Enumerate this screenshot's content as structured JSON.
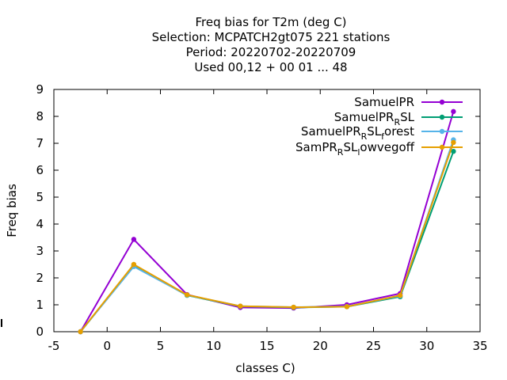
{
  "chart_data": {
    "type": "line",
    "title_lines": [
      "Freq bias  for T2m (deg C)",
      "Selection: MCPATCH2gt075    221 stations",
      "Period: 20220702-20220709",
      "Used  00,12 + 00 01 ... 48"
    ],
    "xlabel": "classes C)",
    "ylabel": "Freq bias",
    "xlim": [
      -5,
      35
    ],
    "ylim": [
      0,
      9
    ],
    "xticks": [
      -5,
      0,
      5,
      10,
      15,
      20,
      25,
      30,
      35
    ],
    "yticks": [
      0,
      1,
      2,
      3,
      4,
      5,
      6,
      7,
      8,
      9
    ],
    "grid": false,
    "legend_position": "top-right",
    "x": [
      -2.5,
      2.5,
      7.5,
      12.5,
      17.5,
      22.5,
      27.5,
      32.5
    ],
    "series": [
      {
        "name": "SamuelPR",
        "legend_parts": [
          {
            "t": "SamuelPR"
          }
        ],
        "color": "#9400d3",
        "values": [
          0.0,
          3.43,
          1.38,
          0.9,
          0.88,
          1.0,
          1.42,
          8.18
        ]
      },
      {
        "name": "SamuelPR_RSL",
        "legend_parts": [
          {
            "t": "SamuelPR"
          },
          {
            "t": "R",
            "sub": true
          },
          {
            "t": "SL"
          }
        ],
        "color": "#009e73",
        "values": [
          0.0,
          2.45,
          1.35,
          0.94,
          0.9,
          0.93,
          1.3,
          6.7
        ]
      },
      {
        "name": "SamuelPR_RSL_forest",
        "legend_parts": [
          {
            "t": "SamuelPR"
          },
          {
            "t": "R",
            "sub": true
          },
          {
            "t": "SL"
          },
          {
            "t": "f",
            "sub": true
          },
          {
            "t": "orest"
          }
        ],
        "color": "#56b4e9",
        "values": [
          0.0,
          2.42,
          1.36,
          0.95,
          0.91,
          0.94,
          1.33,
          7.13
        ]
      },
      {
        "name": "SamPR_RSL_lowvegoff",
        "legend_parts": [
          {
            "t": "SamPR"
          },
          {
            "t": "R",
            "sub": true
          },
          {
            "t": "SL"
          },
          {
            "t": "l",
            "sub": true
          },
          {
            "t": "owvegoff"
          }
        ],
        "color": "#e69f00",
        "values": [
          0.0,
          2.5,
          1.37,
          0.95,
          0.91,
          0.93,
          1.35,
          7.03
        ]
      }
    ]
  }
}
